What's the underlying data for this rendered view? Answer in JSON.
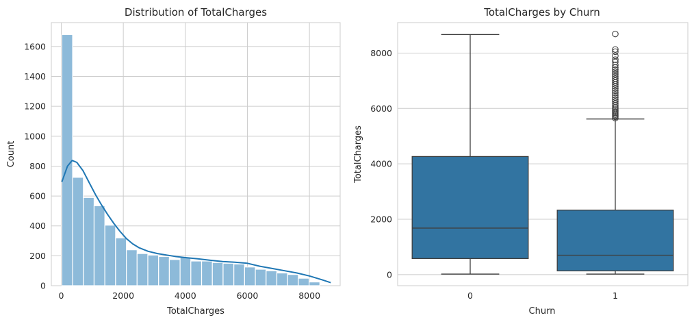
{
  "chart_data": [
    {
      "type": "bar",
      "title": "Distribution of TotalCharges",
      "xlabel": "TotalCharges",
      "ylabel": "Count",
      "xlim": [
        -320,
        8990
      ],
      "ylim": [
        0,
        1760
      ],
      "xticks": [
        0,
        2000,
        4000,
        6000,
        8000
      ],
      "yticks": [
        0,
        200,
        400,
        600,
        800,
        1000,
        1200,
        1400,
        1600
      ],
      "grid": true,
      "bar_color": "#8dbad9",
      "kde_color": "#1f77b4",
      "bins": {
        "start": 19,
        "width": 346.5,
        "counts": [
          1680,
          725,
          590,
          535,
          405,
          320,
          240,
          215,
          205,
          195,
          175,
          190,
          165,
          165,
          155,
          150,
          145,
          125,
          110,
          100,
          85,
          75,
          50,
          25
        ]
      },
      "kde": {
        "x": [
          19,
          200,
          350,
          500,
          700,
          900,
          1100,
          1300,
          1500,
          1700,
          1900,
          2100,
          2300,
          2500,
          2800,
          3100,
          3400,
          3700,
          4000,
          4400,
          4800,
          5200,
          5600,
          6000,
          6400,
          6800,
          7200,
          7600,
          8000,
          8400,
          8685
        ],
        "y": [
          695,
          800,
          838,
          825,
          770,
          690,
          610,
          540,
          475,
          415,
          362,
          315,
          280,
          255,
          230,
          215,
          205,
          195,
          188,
          180,
          170,
          162,
          157,
          150,
          130,
          115,
          100,
          85,
          65,
          40,
          20
        ]
      }
    },
    {
      "type": "box",
      "title": "TotalCharges by Churn",
      "xlabel": "Churn",
      "ylabel": "TotalCharges",
      "categories": [
        "0",
        "1"
      ],
      "ylim": [
        -400,
        9100
      ],
      "yticks": [
        0,
        2000,
        4000,
        6000,
        8000
      ],
      "grid": true,
      "box_color": "#3274a1",
      "boxes": [
        {
          "whisker_low": 19,
          "q1": 580,
          "median": 1680,
          "q3": 4265,
          "whisker_high": 8670,
          "outliers": []
        },
        {
          "whisker_low": 19,
          "q1": 135,
          "median": 700,
          "q3": 2330,
          "whisker_high": 5620,
          "outliers": [
            5650,
            5700,
            5740,
            5780,
            5830,
            5880,
            5930,
            5990,
            6050,
            6120,
            6180,
            6250,
            6320,
            6400,
            6480,
            6560,
            6640,
            6720,
            6800,
            6870,
            6940,
            7010,
            7080,
            7160,
            7240,
            7320,
            7400,
            7480,
            7570,
            7680,
            7760,
            7900,
            8050,
            8130,
            8690
          ]
        }
      ]
    }
  ]
}
